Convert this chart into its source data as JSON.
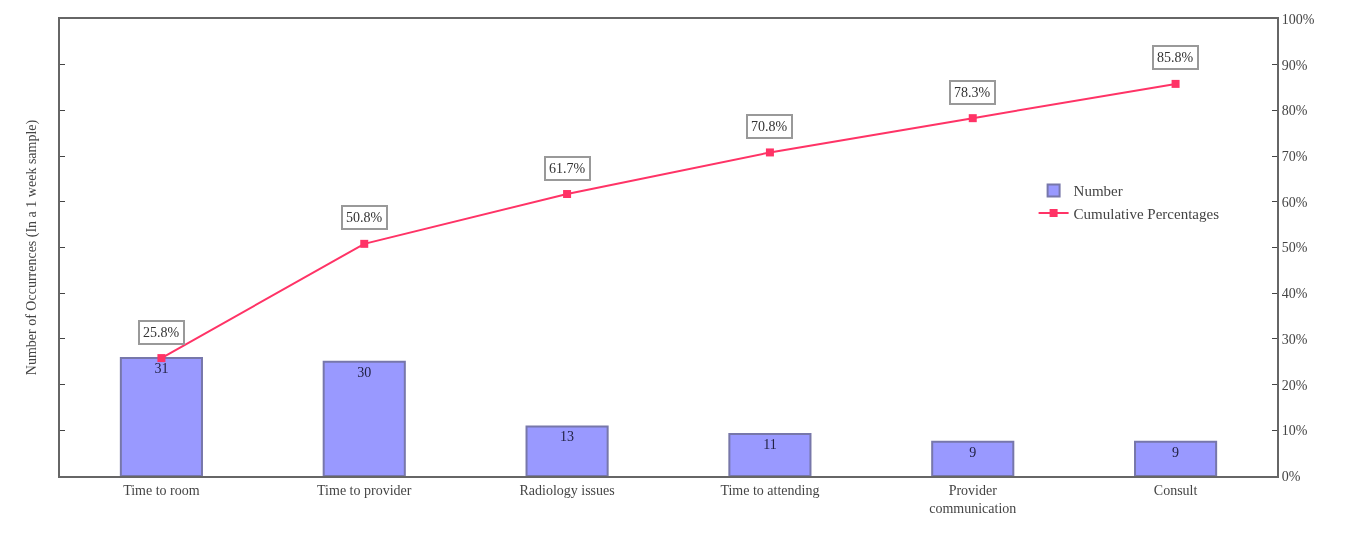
{
  "chart_data": {
    "type": "bar",
    "ylabel": "Number of Occurrences (In a 1 week sample)",
    "categories": [
      "Time to room",
      "Time to provider",
      "Radiology issues",
      "Time to attending",
      "Provider\ncommunication",
      "Consult"
    ],
    "series": [
      {
        "name": "Number",
        "color": "#9999ff",
        "values": [
          31,
          30,
          13,
          11,
          9,
          9
        ],
        "value_labels": [
          "31",
          "30",
          "13",
          "11",
          "9",
          "9"
        ]
      },
      {
        "name": "Cumulative Percentages",
        "type": "line",
        "axis": "y2",
        "color": "#ff3366",
        "marker": "square",
        "values": [
          25.8,
          50.8,
          61.7,
          70.8,
          78.3,
          85.8
        ],
        "value_labels": [
          "25.8%",
          "50.8%",
          "61.7%",
          "70.8%",
          "78.3%",
          "85.8%"
        ]
      }
    ],
    "ylim": [
      0,
      120
    ],
    "yticks": [
      {
        "value": 0,
        "label": null
      },
      {
        "value": 12,
        "label": null
      },
      {
        "value": 24,
        "label": null
      },
      {
        "value": 36,
        "label": null
      },
      {
        "value": 48,
        "label": null
      },
      {
        "value": 60,
        "label": null
      },
      {
        "value": 72,
        "label": null
      },
      {
        "value": 84,
        "label": null
      },
      {
        "value": 96,
        "label": null
      },
      {
        "value": 108,
        "label": null
      },
      {
        "value": 120,
        "label": null
      }
    ],
    "y2lim": [
      0,
      100
    ],
    "y2ticks": [
      {
        "value": 0,
        "label": "0%"
      },
      {
        "value": 10,
        "label": "10%"
      },
      {
        "value": 20,
        "label": "20%"
      },
      {
        "value": 30,
        "label": "30%"
      },
      {
        "value": 40,
        "label": "40%"
      },
      {
        "value": 50,
        "label": "50%"
      },
      {
        "value": 60,
        "label": "60%"
      },
      {
        "value": 70,
        "label": "70%"
      },
      {
        "value": 80,
        "label": "80%"
      },
      {
        "value": 90,
        "label": "90%"
      },
      {
        "value": 100,
        "label": "100%"
      }
    ],
    "legend": "right"
  }
}
